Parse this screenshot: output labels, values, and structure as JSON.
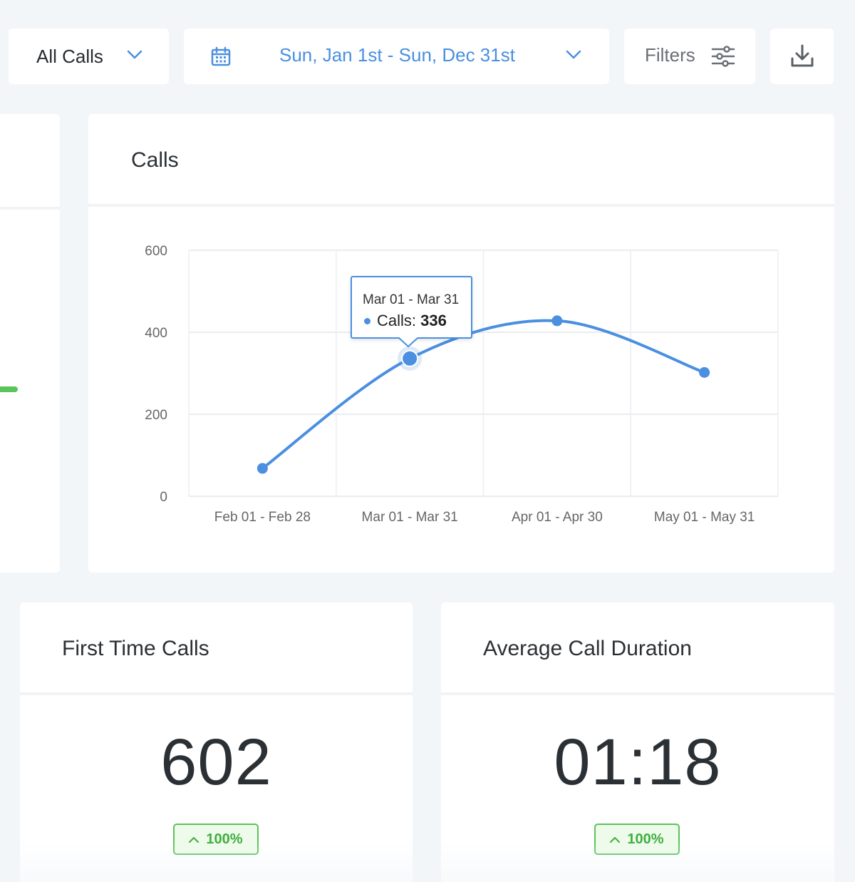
{
  "toolbar": {
    "call_filter": {
      "label": "All Calls",
      "icon": "chevron-down-icon"
    },
    "date_range": {
      "label": "Sun, Jan 1st - Sun, Dec 31st",
      "icon": "calendar-icon"
    },
    "filters": {
      "label": "Filters",
      "icon": "sliders-icon"
    },
    "download": {
      "icon": "download-icon"
    }
  },
  "colors": {
    "accent": "#4a8fe0",
    "success": "#5ac35a",
    "background": "#f3f6f9"
  },
  "calls_card": {
    "title": "Calls",
    "tooltip": {
      "range": "Mar 01 - Mar 31",
      "series_label": "Calls:",
      "value": "336"
    }
  },
  "chart_data": {
    "type": "line",
    "title": "",
    "xlabel": "",
    "ylabel": "",
    "categories": [
      "Feb 01 - Feb 28",
      "Mar 01 - Mar 31",
      "Apr 01 - Apr 30",
      "May 01 - May 31"
    ],
    "series": [
      {
        "values": [
          68,
          336,
          428,
          302
        ]
      }
    ],
    "ylim": [
      0,
      600
    ],
    "yticks": [
      0,
      200,
      400,
      600
    ],
    "grid": true,
    "legend": "none",
    "highlighted_index": 1
  },
  "first_time_calls": {
    "title": "First Time Calls",
    "value": "602",
    "change": "100%"
  },
  "avg_call_duration": {
    "title": "Average Call Duration",
    "value": "01:18",
    "change": "100%"
  }
}
